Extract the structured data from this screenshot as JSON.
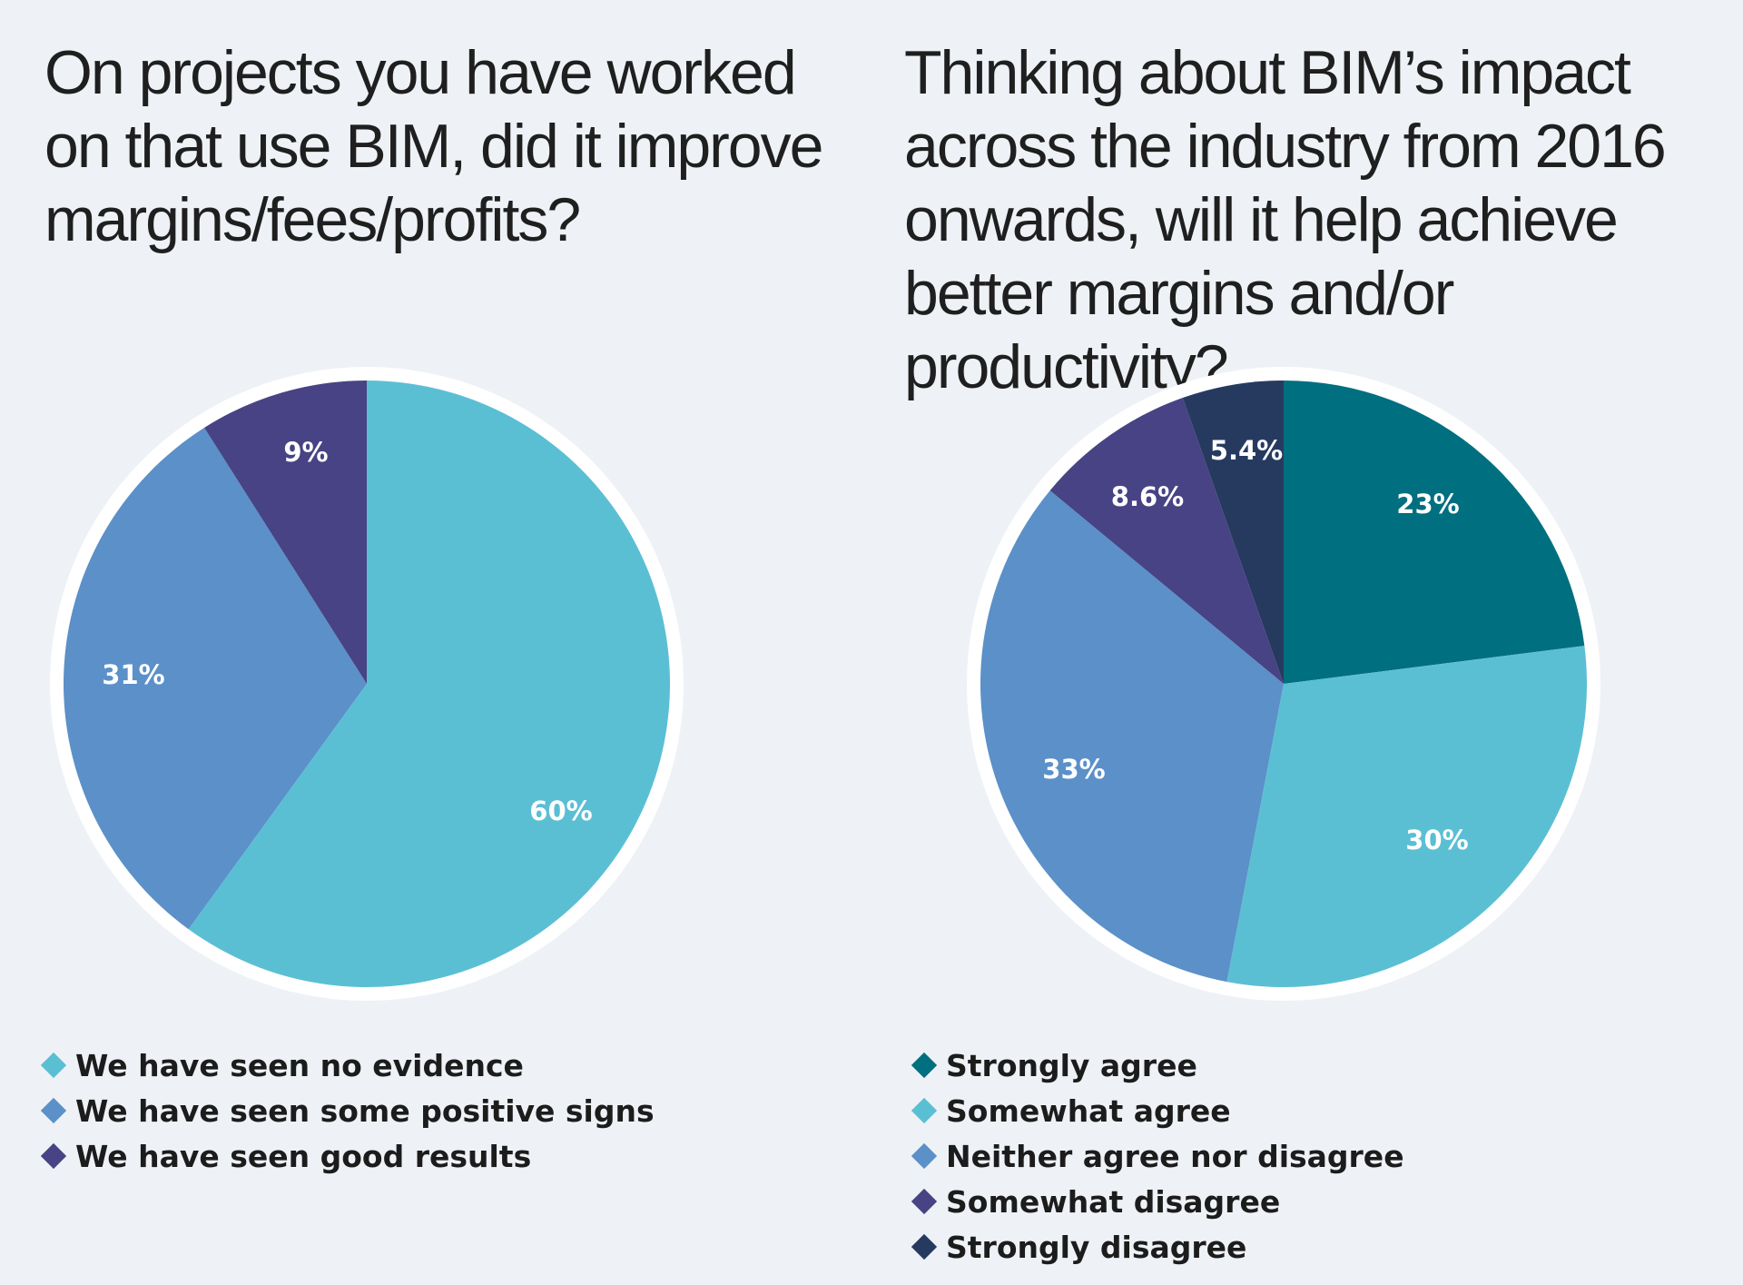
{
  "chart_data": [
    {
      "type": "pie",
      "title": "On projects you have worked on that use BIM, did it improve margins/fees/profits?",
      "categories": [
        "We have seen no evidence",
        "We have seen some positive signs",
        "We have seen good results"
      ],
      "values": [
        60,
        31,
        9
      ],
      "labels": [
        "60%",
        "31%",
        "9%"
      ],
      "colors": [
        "#5bbfd4",
        "#5b90c9",
        "#474384"
      ],
      "start": "12 o'clock, clockwise",
      "legend": "bottom-left"
    },
    {
      "type": "pie",
      "title": "Thinking about BIM’s impact across the industry from 2016 onwards, will it help achieve better margins and/or productivity?",
      "categories": [
        "Strongly agree",
        "Somewhat agree",
        "Neither agree nor disagree",
        "Somewhat disagree",
        "Strongly disagree"
      ],
      "values": [
        23,
        30,
        33,
        8.6,
        5.4
      ],
      "labels": [
        "23%",
        "30%",
        "33%",
        "8.6%",
        "5.4%"
      ],
      "colors": [
        "#006f7f",
        "#5bbfd4",
        "#5b90c9",
        "#474384",
        "#263a60"
      ],
      "start": "12 o'clock, clockwise",
      "legend": "bottom-left"
    }
  ],
  "background": "#eef2f6"
}
